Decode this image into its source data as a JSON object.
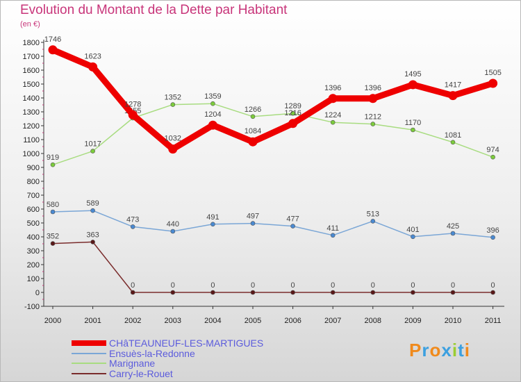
{
  "chart_data": {
    "type": "line",
    "title": "Evolution du Montant de la Dette par Habitant",
    "unit_label": "(en €)",
    "x": [
      "2000",
      "2001",
      "2002",
      "2003",
      "2004",
      "2005",
      "2006",
      "2007",
      "2008",
      "2009",
      "2010",
      "2011"
    ],
    "ylim": [
      -100,
      1800
    ],
    "yticks": [
      -100,
      0,
      100,
      200,
      300,
      400,
      500,
      600,
      700,
      800,
      900,
      1000,
      1100,
      1200,
      1300,
      1400,
      1500,
      1600,
      1700,
      1800
    ],
    "grid": false,
    "legend_position": "bottom-left",
    "series": [
      {
        "name": "CHâTEAUNEUF-LES-MARTIGUES",
        "color": "#ee0000",
        "marker": "#ee0000",
        "values": [
          1746,
          1623,
          1278,
          1032,
          1204,
          1084,
          1216,
          1396,
          1396,
          1495,
          1417,
          1505
        ]
      },
      {
        "name": "Ensuès-la-Redonne",
        "color": "#7aa6d6",
        "marker": "#4a8ad2",
        "values": [
          580,
          589,
          473,
          440,
          491,
          497,
          477,
          411,
          513,
          401,
          425,
          396
        ]
      },
      {
        "name": "Marignane",
        "color": "#a8dc80",
        "marker": "#7ccc3c",
        "values": [
          919,
          1017,
          1255,
          1352,
          1359,
          1266,
          1289,
          1224,
          1212,
          1170,
          1081,
          974
        ]
      },
      {
        "name": "Carry-le-Rouet",
        "color": "#7a2c2c",
        "marker": "#5a1818",
        "values": [
          352,
          363,
          0,
          0,
          0,
          0,
          0,
          0,
          0,
          0,
          0,
          0
        ]
      }
    ]
  },
  "brand": {
    "text": "Proxiti",
    "colors": [
      "#f08a1c",
      "#3ca0e0",
      "#f08a1c",
      "#3ca0e0",
      "#9acd32",
      "#3ca0e0",
      "#f08a1c"
    ]
  }
}
